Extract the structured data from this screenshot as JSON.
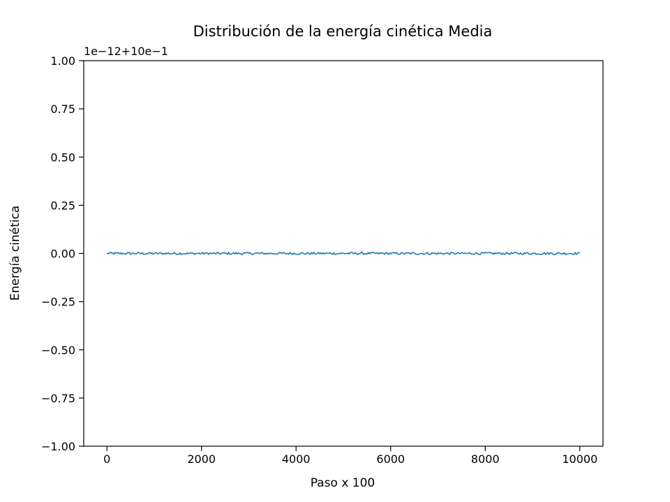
{
  "chart_data": {
    "type": "line",
    "title": "Distribución de la energía cinética Media",
    "xlabel": "Paso x 100",
    "ylabel": "Energía cinética",
    "offset_text": "1e−12+10e−1",
    "xlim": [
      -490,
      10490
    ],
    "ylim": [
      -1.0,
      1.0
    ],
    "x_ticks": [
      0,
      2000,
      4000,
      6000,
      8000,
      10000
    ],
    "x_tick_labels": [
      "0",
      "2000",
      "4000",
      "6000",
      "8000",
      "10000"
    ],
    "y_ticks": [
      1.0,
      0.75,
      0.5,
      0.25,
      0.0,
      -0.25,
      -0.5,
      -0.75,
      -1.0
    ],
    "y_tick_labels": [
      "1.00",
      "0.75",
      "0.50",
      "0.25",
      "0.00",
      "−0.25",
      "−0.50",
      "−0.75",
      "−1.00"
    ],
    "grid": false,
    "series": [
      {
        "color": "#1f77b4",
        "x_start": 0,
        "x_end": 10000,
        "x_step": 25,
        "y_mean": 0.0,
        "y_noise_amplitude": 0.006
      }
    ]
  }
}
